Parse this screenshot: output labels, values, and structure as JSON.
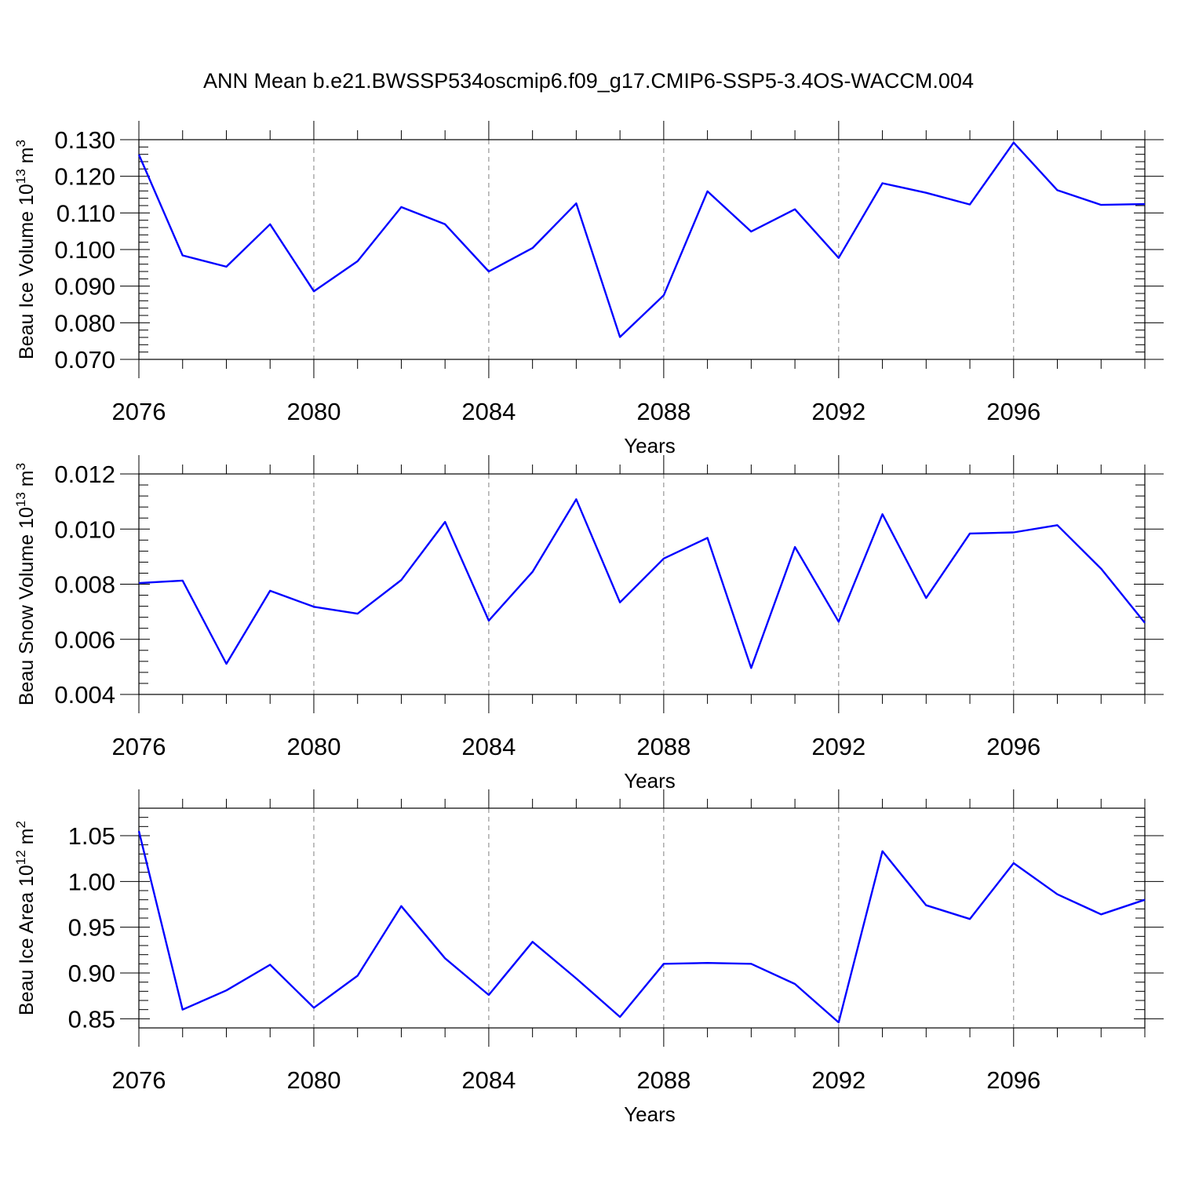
{
  "title": "ANN Mean b.e21.BWSSP534oscmip6.f09_g17.CMIP6-SSP5-3.4OS-WACCM.004",
  "colors": {
    "line": "#0000ff",
    "axis": "#000000",
    "grid": "#808080"
  },
  "chart_data": [
    {
      "type": "line",
      "ylabel": {
        "base": "Beau Ice Volume 10",
        "exp": "13",
        "unit": " m",
        "unit_exp": "3"
      },
      "xlabel": "Years",
      "xlim": [
        2076,
        2099
      ],
      "ylim": [
        0.07,
        0.13
      ],
      "xticks": [
        2076,
        2080,
        2084,
        2088,
        2092,
        2096
      ],
      "xtick_labels": [
        "2076",
        "2080",
        "2084",
        "2088",
        "2092",
        "2096"
      ],
      "yticks": [
        0.07,
        0.08,
        0.09,
        0.1,
        0.11,
        0.12,
        0.13
      ],
      "ytick_labels": [
        "0.070",
        "0.080",
        "0.090",
        "0.100",
        "0.110",
        "0.120",
        "0.130"
      ],
      "x": [
        2076,
        2077,
        2078,
        2079,
        2080,
        2081,
        2082,
        2083,
        2084,
        2085,
        2086,
        2087,
        2088,
        2089,
        2090,
        2091,
        2092,
        2093,
        2094,
        2095,
        2096,
        2097,
        2098,
        2099
      ],
      "values": [
        0.1259,
        0.0984,
        0.0953,
        0.1069,
        0.0886,
        0.0968,
        0.1116,
        0.1069,
        0.094,
        0.1004,
        0.1126,
        0.0761,
        0.0875,
        0.1159,
        0.1049,
        0.111,
        0.0977,
        0.1181,
        0.1155,
        0.1123,
        0.1292,
        0.1162,
        0.1122,
        0.1124
      ]
    },
    {
      "type": "line",
      "ylabel": {
        "base": "Beau Snow Volume 10",
        "exp": "13",
        "unit": " m",
        "unit_exp": "3"
      },
      "xlabel": "Years",
      "xlim": [
        2076,
        2099
      ],
      "ylim": [
        0.004,
        0.012
      ],
      "xticks": [
        2076,
        2080,
        2084,
        2088,
        2092,
        2096
      ],
      "xtick_labels": [
        "2076",
        "2080",
        "2084",
        "2088",
        "2092",
        "2096"
      ],
      "yticks": [
        0.004,
        0.006,
        0.008,
        0.01,
        0.012
      ],
      "ytick_labels": [
        "0.004",
        "0.006",
        "0.008",
        "0.010",
        "0.012"
      ],
      "x": [
        2076,
        2077,
        2078,
        2079,
        2080,
        2081,
        2082,
        2083,
        2084,
        2085,
        2086,
        2087,
        2088,
        2089,
        2090,
        2091,
        2092,
        2093,
        2094,
        2095,
        2096,
        2097,
        2098,
        2099
      ],
      "values": [
        0.00804,
        0.00813,
        0.00511,
        0.00776,
        0.00718,
        0.00693,
        0.00815,
        0.01026,
        0.00668,
        0.00845,
        0.01108,
        0.00734,
        0.00893,
        0.00968,
        0.00496,
        0.00935,
        0.00664,
        0.01054,
        0.0075,
        0.00984,
        0.00988,
        0.01014,
        0.00856,
        0.0066
      ]
    },
    {
      "type": "line",
      "ylabel": {
        "base": "Beau Ice Area 10",
        "exp": "12",
        "unit": " m",
        "unit_exp": "2"
      },
      "xlabel": "Years",
      "xlim": [
        2076,
        2099
      ],
      "ylim": [
        0.84,
        1.08
      ],
      "xticks": [
        2076,
        2080,
        2084,
        2088,
        2092,
        2096
      ],
      "xtick_labels": [
        "2076",
        "2080",
        "2084",
        "2088",
        "2092",
        "2096"
      ],
      "yticks": [
        0.85,
        0.9,
        0.95,
        1.0,
        1.05
      ],
      "ytick_labels": [
        "0.85",
        "0.90",
        "0.95",
        "1.00",
        "1.05"
      ],
      "x": [
        2076,
        2077,
        2078,
        2079,
        2080,
        2081,
        2082,
        2083,
        2084,
        2085,
        2086,
        2087,
        2088,
        2089,
        2090,
        2091,
        2092,
        2093,
        2094,
        2095,
        2096,
        2097,
        2098,
        2099
      ],
      "values": [
        1.055,
        0.86,
        0.881,
        0.909,
        0.862,
        0.897,
        0.973,
        0.916,
        0.876,
        0.934,
        0.894,
        0.852,
        0.91,
        0.911,
        0.91,
        0.888,
        0.846,
        1.033,
        0.974,
        0.959,
        1.02,
        0.986,
        0.964,
        0.98
      ]
    }
  ]
}
